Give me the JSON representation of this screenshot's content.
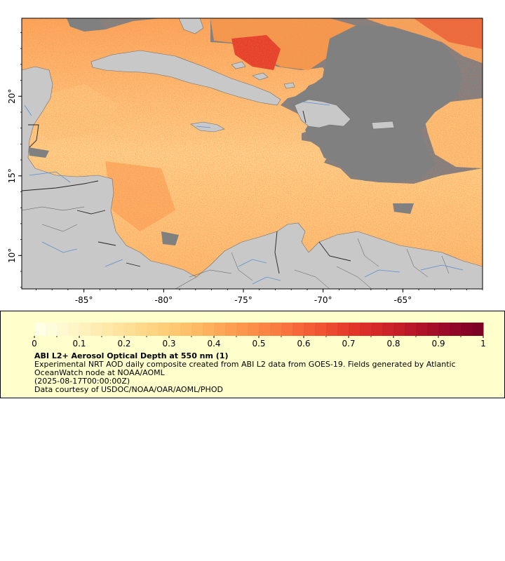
{
  "map": {
    "lon_range": [
      -88.9,
      -60.0
    ],
    "lat_range": [
      7.9,
      24.9
    ],
    "lon_ticks": [
      {
        "value": -85,
        "label": "-85°"
      },
      {
        "value": -80,
        "label": "-80°"
      },
      {
        "value": -75,
        "label": "-75°"
      },
      {
        "value": -70,
        "label": "-70°"
      },
      {
        "value": -65,
        "label": "-65°"
      }
    ],
    "lat_ticks": [
      {
        "value": 20,
        "label": "20°"
      },
      {
        "value": 15,
        "label": "15°"
      },
      {
        "value": 10,
        "label": "10°"
      }
    ],
    "colors": {
      "land": "#c8c8c8",
      "no_data": "#808080",
      "aod_low": "#ffe19a",
      "aod_mid": "#fca65a",
      "aod_high": "#dc2f1e",
      "rivers": "#5a8fd0",
      "borders": "#555555"
    }
  },
  "legend": {
    "colorbar_min": 0,
    "colorbar_max": 1,
    "colorbar_ticks": [
      "0",
      "0.1",
      "0.2",
      "0.3",
      "0.4",
      "0.5",
      "0.6",
      "0.7",
      "0.8",
      "0.9",
      "1"
    ],
    "palette": [
      "#ffffe6",
      "#fff3c1",
      "#ffe39d",
      "#fed17c",
      "#fdb862",
      "#fc994e",
      "#f97a40",
      "#f25634",
      "#e0302a",
      "#c51e28",
      "#a10c28",
      "#7d0025"
    ],
    "title": "ABI L2+ Aerosol Optical Depth at 550 nm (1)",
    "summary": "Experimental NRT AOD daily composite created from ABI L2 data from GOES-19. Fields generated by Atlantic OceanWatch node at NOAA/AOML",
    "time": "(2025-08-17T00:00:00Z)",
    "credit": "Data courtesy of USDOC/NOAA/OAR/AOML/PHOD"
  }
}
